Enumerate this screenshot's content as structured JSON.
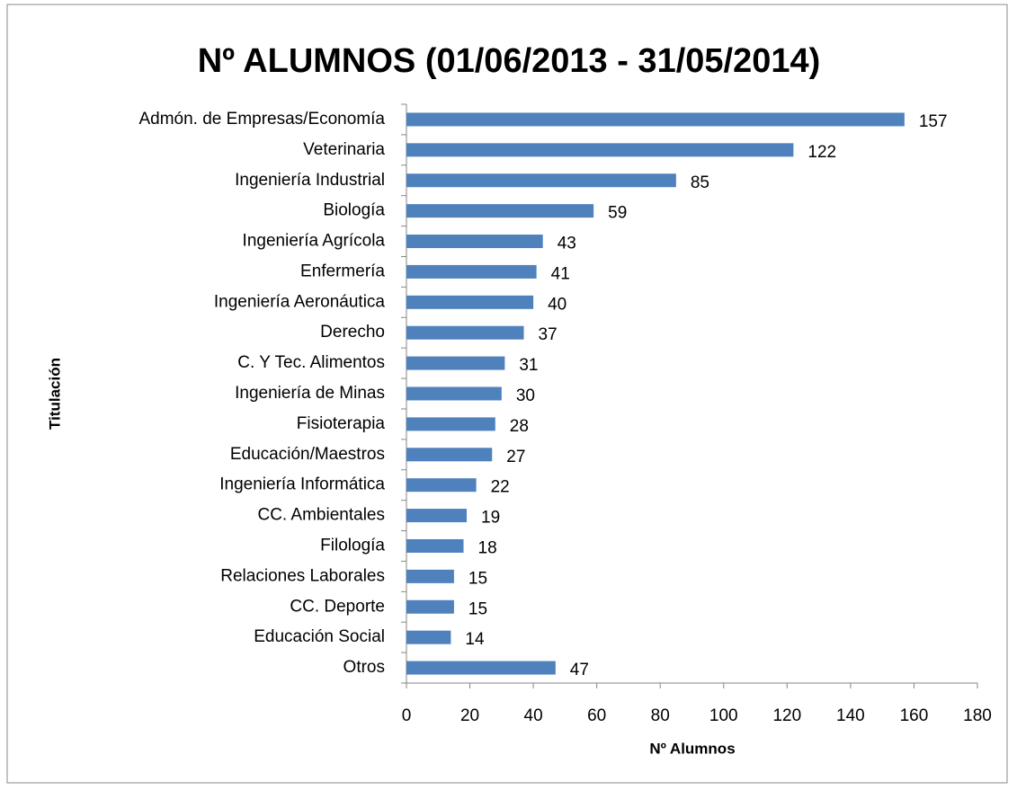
{
  "chart_data": {
    "type": "bar",
    "orientation": "horizontal",
    "title": "Nº ALUMNOS (01/06/2013 - 31/05/2014)",
    "x_label": "Nº Alumnos",
    "y_label": "Titulación",
    "categories": [
      "Admón. de Empresas/Economía",
      "Veterinaria",
      "Ingeniería Industrial",
      "Biología",
      "Ingeniería Agrícola",
      "Enfermería",
      "Ingeniería Aeronáutica",
      "Derecho",
      "C. Y Tec. Alimentos",
      "Ingeniería de Minas",
      "Fisioterapia",
      "Educación/Maestros",
      "Ingeniería Informática",
      "CC. Ambientales",
      "Filología",
      "Relaciones Laborales",
      "CC. Deporte",
      "Educación Social",
      "Otros"
    ],
    "values": [
      157,
      122,
      85,
      59,
      43,
      41,
      40,
      37,
      31,
      30,
      28,
      27,
      22,
      19,
      18,
      15,
      15,
      14,
      47
    ],
    "color": "#4f81bd",
    "xlim": [
      0,
      180
    ],
    "xticks": [
      0,
      20,
      40,
      60,
      80,
      100,
      120,
      140,
      160,
      180
    ],
    "grid": false
  }
}
